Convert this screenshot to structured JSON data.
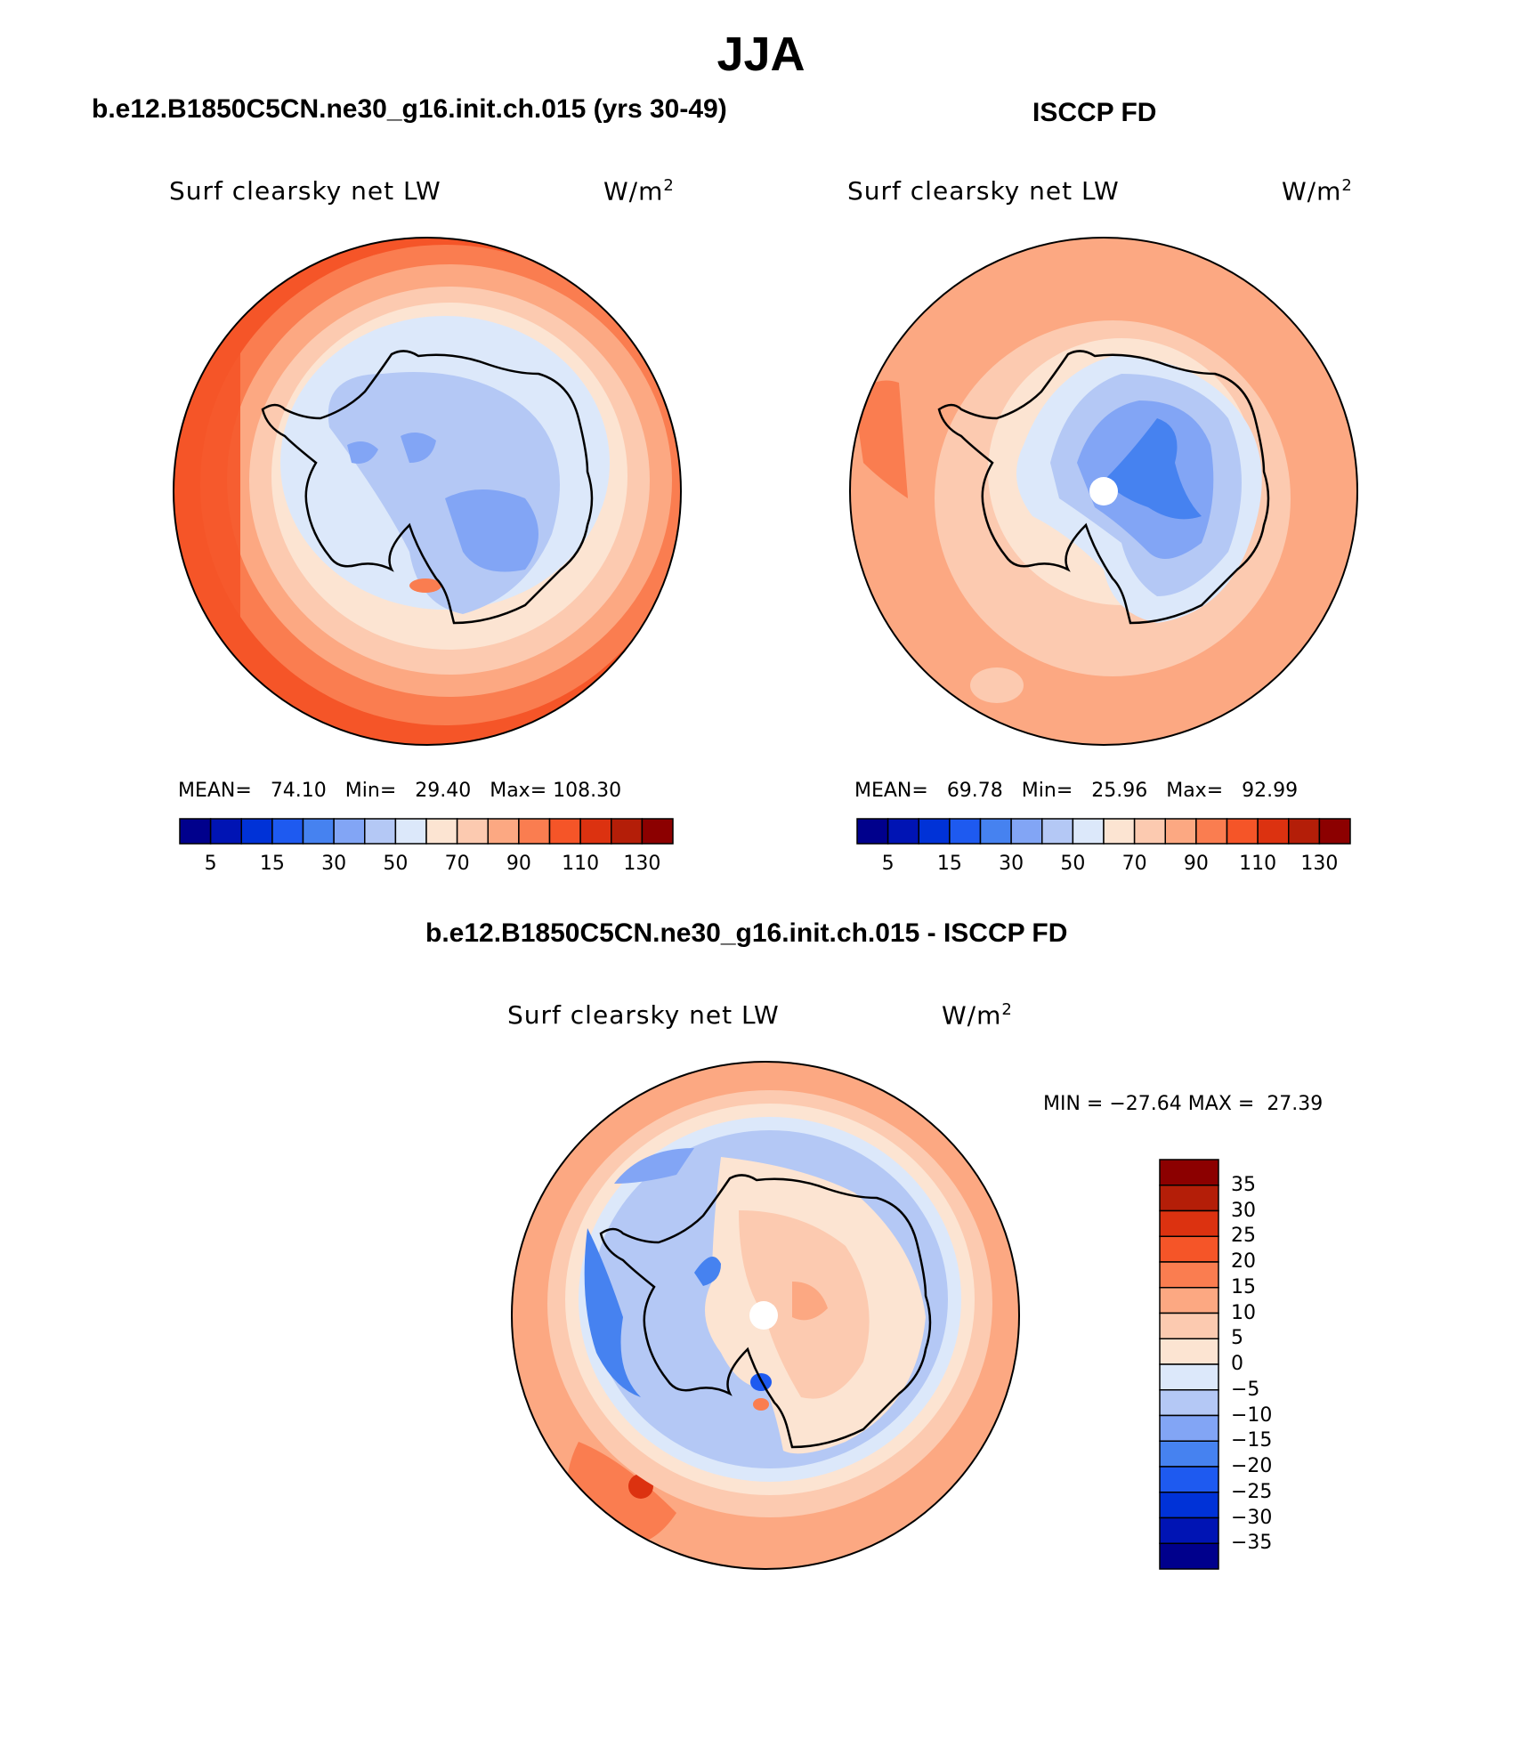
{
  "figure": {
    "title": "JJA",
    "colors": {
      "coastline": "#000000",
      "outline": "#000000",
      "missing": "#ffffff"
    }
  },
  "panels": [
    {
      "id": "model",
      "title": "b.e12.B1850C5CN.ne30_g16.init.ch.015 (yrs 30-49)",
      "variable": "Surf clearsky net LW",
      "units": "W/m",
      "units_exp": "2",
      "stats": {
        "mean_label": "MEAN=",
        "mean": "74.10",
        "min_label": "Min=",
        "min": "29.40",
        "max_label": "Max=",
        "max": "108.30"
      }
    },
    {
      "id": "obs",
      "title": "ISCCP FD",
      "variable": "Surf clearsky net LW",
      "units": "W/m",
      "units_exp": "2",
      "stats": {
        "mean_label": "MEAN=",
        "mean": "69.78",
        "min_label": "Min=",
        "min": "25.96",
        "max_label": "Max=",
        "max": "92.99"
      }
    },
    {
      "id": "diff",
      "title": "b.e12.B1850C5CN.ne30_g16.init.ch.015 - ISCCP FD",
      "variable": "Surf clearsky net LW",
      "units": "W/m",
      "units_exp": "2",
      "stats": {
        "min_label": "MIN =",
        "min": "−27.64",
        "max_label": "MAX =",
        "max": "27.39"
      }
    }
  ],
  "colorbar_main": {
    "colors": [
      "#00008c",
      "#0014b4",
      "#0032d7",
      "#1e5af0",
      "#4682f0",
      "#82a5f5",
      "#b4c8f5",
      "#dce8fa",
      "#fce4d2",
      "#fccab0",
      "#fca882",
      "#fa7d50",
      "#f55528",
      "#dc3210",
      "#b41e08",
      "#8c0000"
    ],
    "tick_labels": [
      "5",
      "15",
      "30",
      "50",
      "70",
      "90",
      "110",
      "130"
    ]
  },
  "colorbar_diff": {
    "colors": [
      "#8c0000",
      "#b41e08",
      "#dc3210",
      "#f55528",
      "#fa7d50",
      "#fca882",
      "#fccab0",
      "#fce4d2",
      "#dce8fa",
      "#b4c8f5",
      "#82a5f5",
      "#4682f0",
      "#1e5af0",
      "#0032d7",
      "#0014b4",
      "#00008c"
    ],
    "tick_labels": [
      "35",
      "30",
      "25",
      "20",
      "15",
      "10",
      "5",
      "0",
      "−5",
      "−10",
      "−15",
      "−20",
      "−25",
      "−30",
      "−35"
    ]
  }
}
